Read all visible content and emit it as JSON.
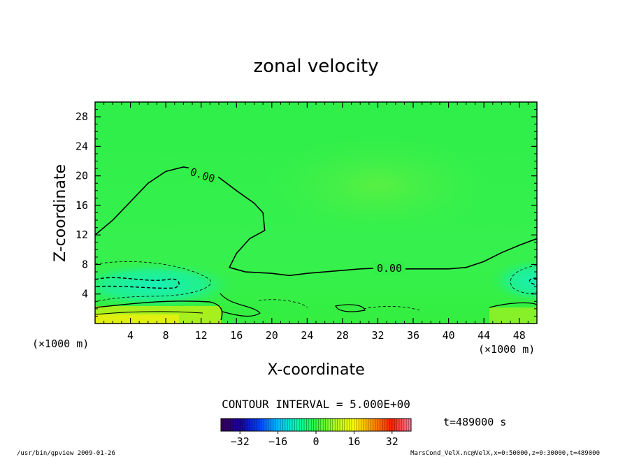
{
  "chart_data": {
    "type": "heatmap",
    "title": "zonal velocity",
    "xlabel": "X-coordinate",
    "ylabel": "Z-coordinate",
    "x_unit_note": "(×1000 m)",
    "y_unit_note": "(×1000 m)",
    "xlim": [
      0,
      50
    ],
    "ylim": [
      0,
      30
    ],
    "x_ticks": [
      4,
      8,
      12,
      16,
      20,
      24,
      28,
      32,
      36,
      40,
      44,
      48
    ],
    "y_ticks": [
      4,
      8,
      12,
      16,
      20,
      24,
      28
    ],
    "contour_interval_label": "CONTOUR INTERVAL = 5.000E+00",
    "zero_contour_labels": [
      "0.00",
      "0.00"
    ],
    "zero_contour": [
      [
        0,
        12.0
      ],
      [
        2,
        14.0
      ],
      [
        4,
        16.5
      ],
      [
        6,
        19.0
      ],
      [
        8,
        20.6
      ],
      [
        10,
        21.2
      ],
      [
        12,
        20.8
      ],
      [
        14,
        19.8
      ],
      [
        16,
        18.0
      ],
      [
        18,
        16.3
      ],
      [
        19,
        15.0
      ],
      [
        19.2,
        12.6
      ],
      [
        17.5,
        11.5
      ],
      [
        16,
        9.5
      ],
      [
        15.2,
        7.6
      ],
      [
        17,
        7.0
      ],
      [
        20,
        6.8
      ],
      [
        22,
        6.5
      ],
      [
        24,
        6.8
      ],
      [
        26,
        7.0
      ],
      [
        28,
        7.2
      ],
      [
        30,
        7.4
      ],
      [
        32,
        7.5
      ],
      [
        34,
        7.4
      ],
      [
        36,
        7.4
      ],
      [
        38,
        7.4
      ],
      [
        40,
        7.4
      ],
      [
        42,
        7.6
      ],
      [
        44,
        8.4
      ],
      [
        46,
        9.6
      ],
      [
        48,
        10.6
      ],
      [
        50,
        11.5
      ]
    ],
    "colorbar": {
      "ticks": [
        -32,
        -16,
        0,
        16,
        32
      ],
      "range": [
        -40,
        40
      ],
      "colors": [
        "#3a0050",
        "#1a00a0",
        "#0040ff",
        "#00c0ff",
        "#00ffb0",
        "#30ff40",
        "#b0ff20",
        "#ffff00",
        "#ff9000",
        "#ff2000",
        "#ff80a0"
      ]
    },
    "time_label": "t=489000 s",
    "grid": false
  },
  "footer": {
    "left": "/usr/bin/gpview  2009-01-26",
    "right": "MarsCond_VelX.nc@VelX,x=0:50000,z=0:30000,t=489000"
  }
}
